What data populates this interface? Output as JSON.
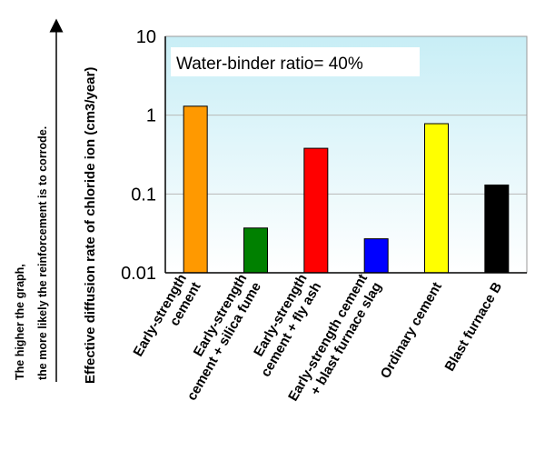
{
  "chart_data": {
    "type": "bar",
    "annotation": "Water-binder ratio= 40%",
    "ylabel": "Effective diffusion rate of chloride ion (cm3/year)",
    "side_note": [
      "The higher the graph,",
      "the more likely the reinforcement is to corrode."
    ],
    "yscale": "log",
    "ylim": [
      0.01,
      10
    ],
    "yticks": [
      "10",
      "1",
      "0.1",
      "0.01"
    ],
    "categories": [
      [
        "Early-strength",
        "cement"
      ],
      [
        "Early-strength",
        "cement + silica fume"
      ],
      [
        "Early-strength",
        "cement + fly ash"
      ],
      [
        "Early-strength cement",
        "+ blast furnace slag"
      ],
      [
        "Ordinary cement"
      ],
      [
        "Blast furnace B"
      ]
    ],
    "values": [
      1.3,
      0.037,
      0.38,
      0.027,
      0.78,
      0.13
    ],
    "colors": [
      "#ff9900",
      "#008000",
      "#ff0000",
      "#0000ff",
      "#ffff00",
      "#000000"
    ],
    "grid": true,
    "background": "gradient light-cyan to white"
  }
}
